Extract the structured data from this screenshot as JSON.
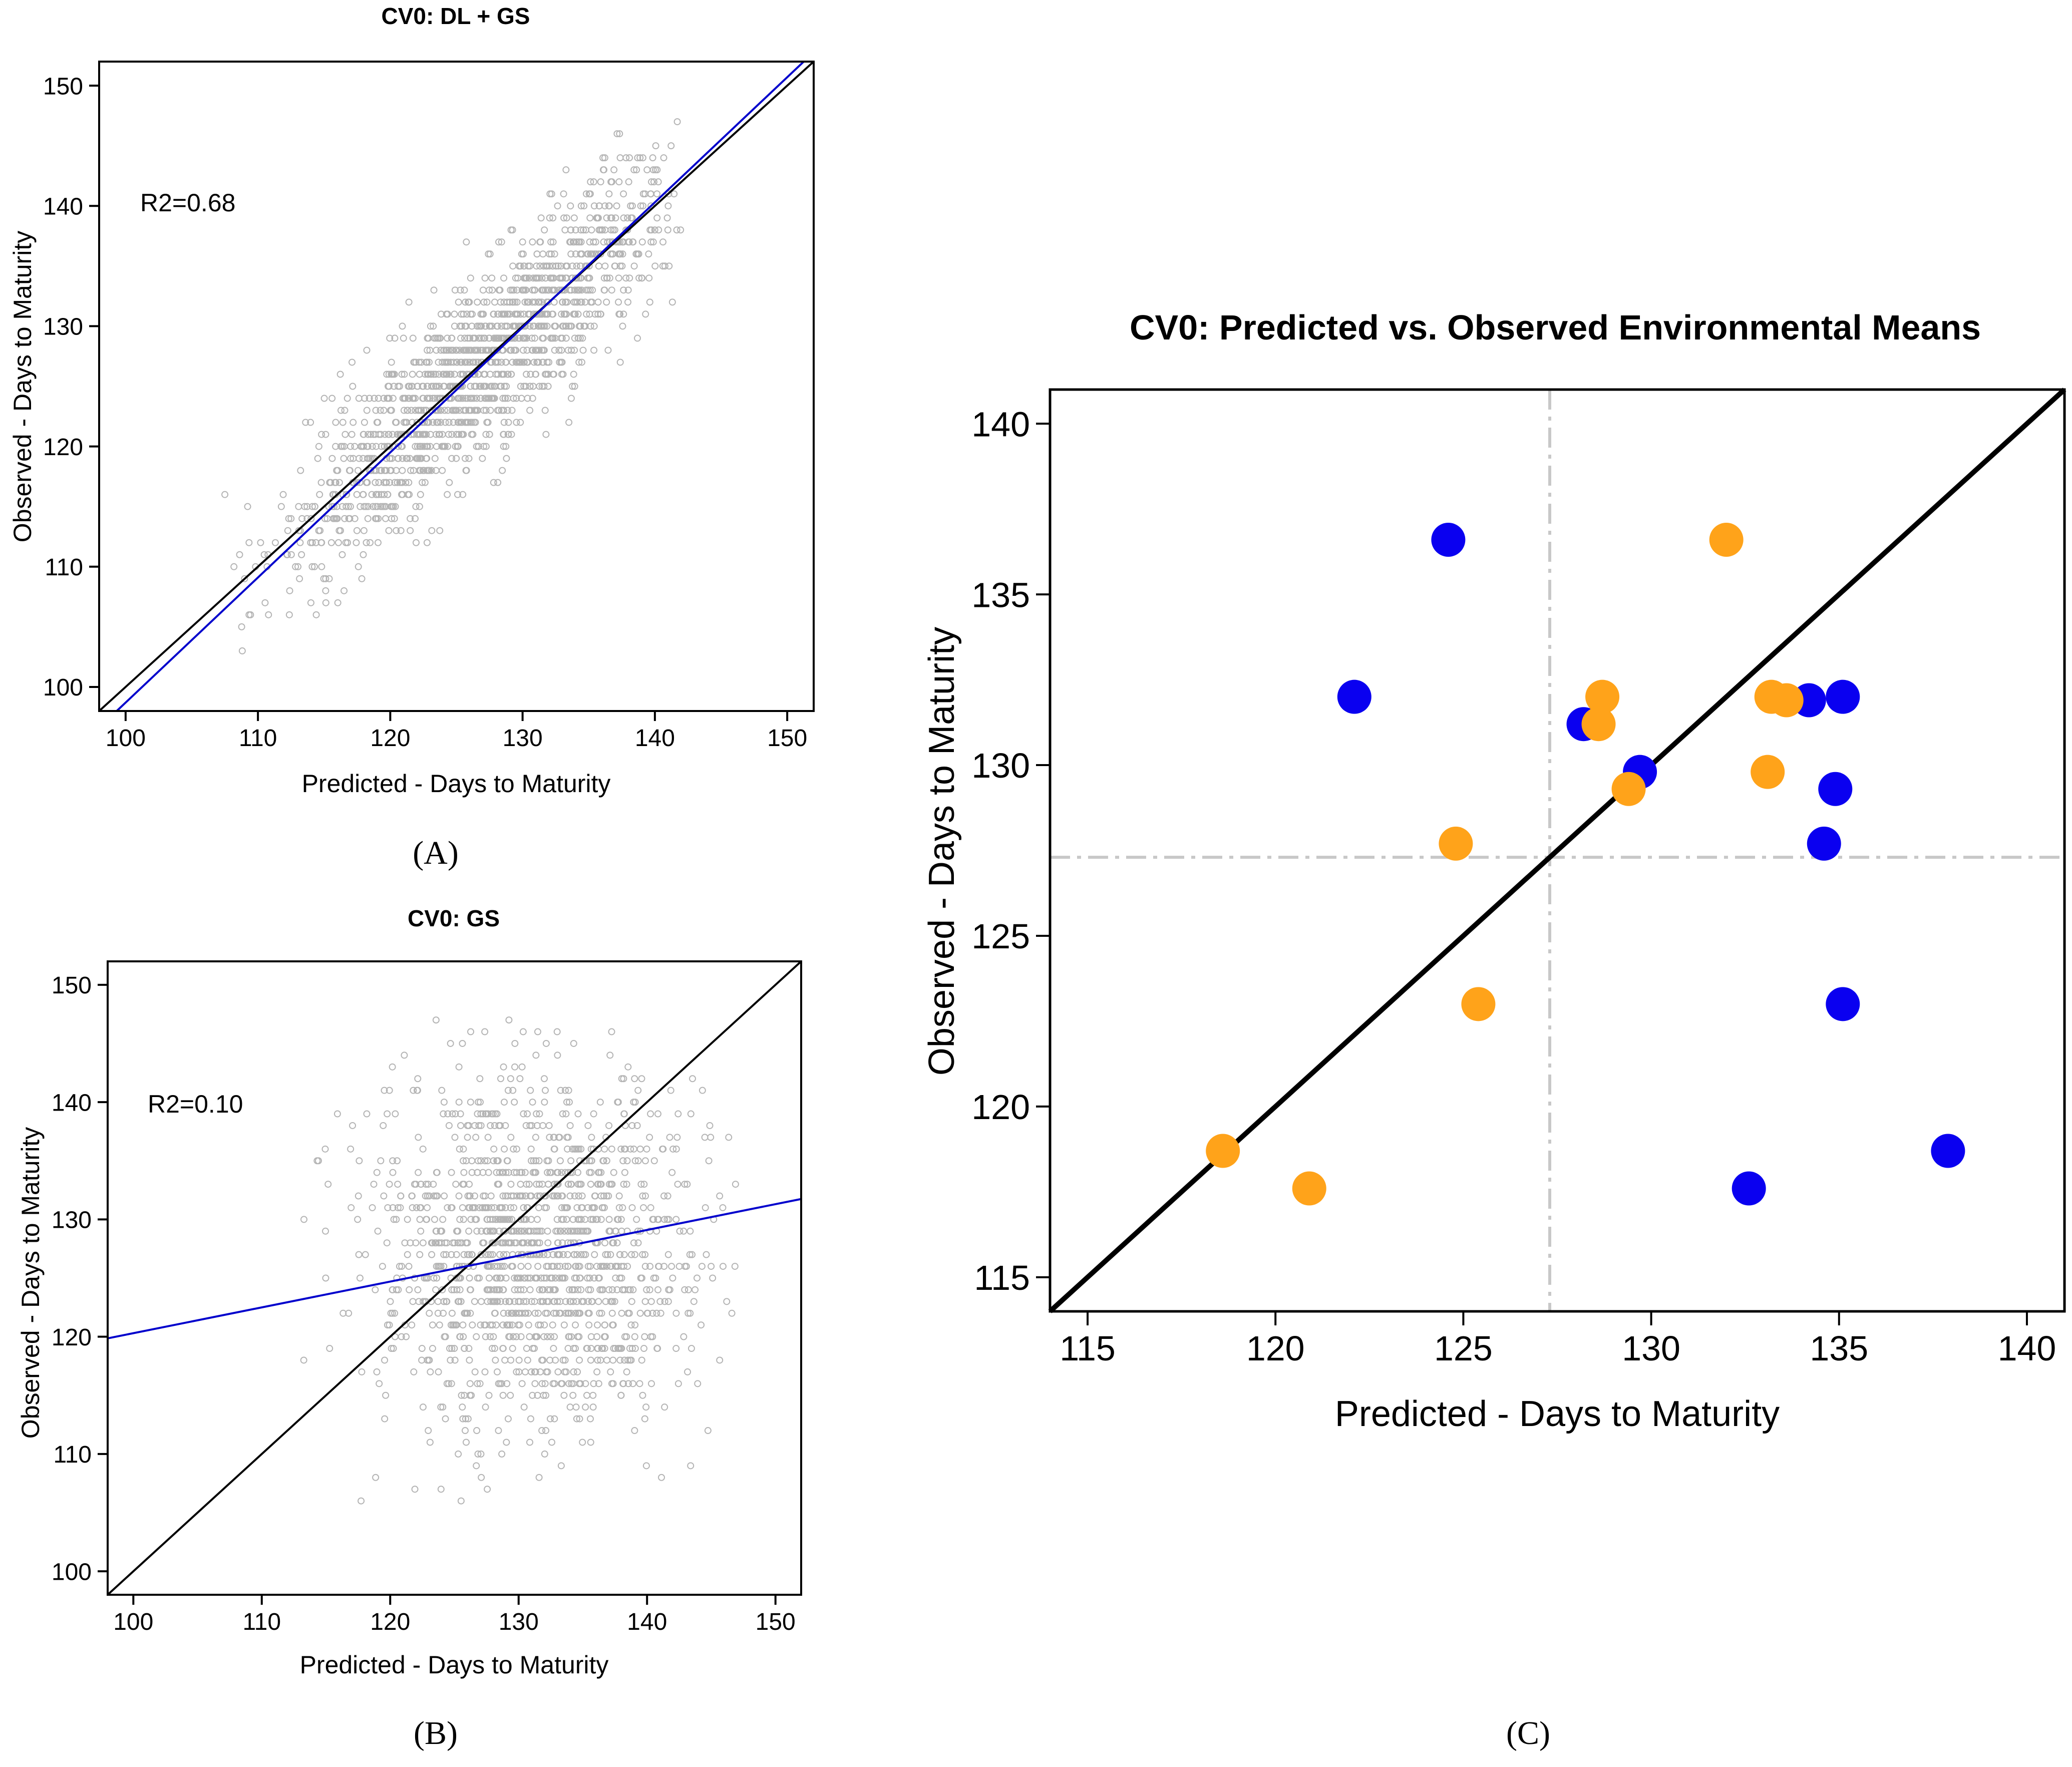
{
  "colors": {
    "scatter_point": "#b4b4b4",
    "regression_line": "#0000cc",
    "identity_line": "#000000",
    "reference_line": "#c8c8c8",
    "series_blue": "#0a00f0",
    "series_orange": "#ffa31a"
  },
  "panels": {
    "A": {
      "letter": "(A)"
    },
    "B": {
      "letter": "(B)"
    },
    "C": {
      "letter": "(C)"
    }
  },
  "chart_data": [
    {
      "id": "A",
      "type": "scatter",
      "title": "CV0: DL + GS",
      "xlabel": "Predicted - Days to Maturity",
      "ylabel": "Observed - Days to Maturity",
      "xlim": [
        98,
        152
      ],
      "ylim": [
        98,
        152
      ],
      "xticks": [
        100,
        110,
        120,
        130,
        140,
        150
      ],
      "yticks": [
        100,
        110,
        120,
        130,
        140,
        150
      ],
      "annotation": "R2=0.68",
      "grid": false,
      "points_description": "dense cloud of open grey circles along the identity line, observed range about 103 to 147",
      "lines": [
        {
          "kind": "identity",
          "slope": 1,
          "intercept": 0
        },
        {
          "kind": "regression",
          "slope": 1.04,
          "intercept": -5.3
        }
      ]
    },
    {
      "id": "B",
      "type": "scatter",
      "title": "CV0: GS",
      "xlabel": "Predicted - Days to Maturity",
      "ylabel": "Observed - Days to Maturity",
      "xlim": [
        98,
        152
      ],
      "ylim": [
        98,
        152
      ],
      "xticks": [
        100,
        110,
        120,
        130,
        140,
        150
      ],
      "yticks": [
        100,
        110,
        120,
        130,
        140,
        150
      ],
      "annotation": "R2=0.10",
      "grid": false,
      "points_description": "diffuse cloud of open grey circles, predicted about 112 to 147, observed about 103 to 147",
      "lines": [
        {
          "kind": "identity",
          "slope": 1,
          "intercept": 0
        },
        {
          "kind": "regression",
          "slope": 0.22,
          "intercept": 98.3
        }
      ]
    },
    {
      "id": "C",
      "type": "scatter",
      "title": "CV0: Predicted vs. Observed Environmental Means",
      "xlabel": "Predicted - Days to Maturity",
      "ylabel": "Observed - Days to Maturity",
      "xlim": [
        114,
        141
      ],
      "ylim": [
        114,
        141
      ],
      "xticks": [
        115,
        120,
        125,
        130,
        135,
        140
      ],
      "yticks": [
        115,
        120,
        125,
        130,
        135,
        140
      ],
      "grid": false,
      "reference_lines": {
        "x": 127.3,
        "y": 127.3
      },
      "lines": [
        {
          "kind": "identity",
          "slope": 1,
          "intercept": 0
        }
      ],
      "series": [
        {
          "color": "blue",
          "points": [
            [
              124.6,
              136.6
            ],
            [
              122.1,
              132.0
            ],
            [
              128.2,
              131.2
            ],
            [
              129.7,
              129.8
            ],
            [
              134.2,
              131.9
            ],
            [
              135.1,
              132.0
            ],
            [
              134.9,
              129.3
            ],
            [
              134.6,
              127.7
            ],
            [
              135.1,
              123.0
            ],
            [
              132.6,
              117.6
            ],
            [
              137.9,
              118.7
            ]
          ]
        },
        {
          "color": "orange",
          "points": [
            [
              132.0,
              136.6
            ],
            [
              128.7,
              132.0
            ],
            [
              128.6,
              131.2
            ],
            [
              129.4,
              129.3
            ],
            [
              133.2,
              132.0
            ],
            [
              133.6,
              131.9
            ],
            [
              133.1,
              129.8
            ],
            [
              124.8,
              127.7
            ],
            [
              125.4,
              123.0
            ],
            [
              118.6,
              118.7
            ],
            [
              120.9,
              117.6
            ]
          ]
        }
      ]
    }
  ]
}
